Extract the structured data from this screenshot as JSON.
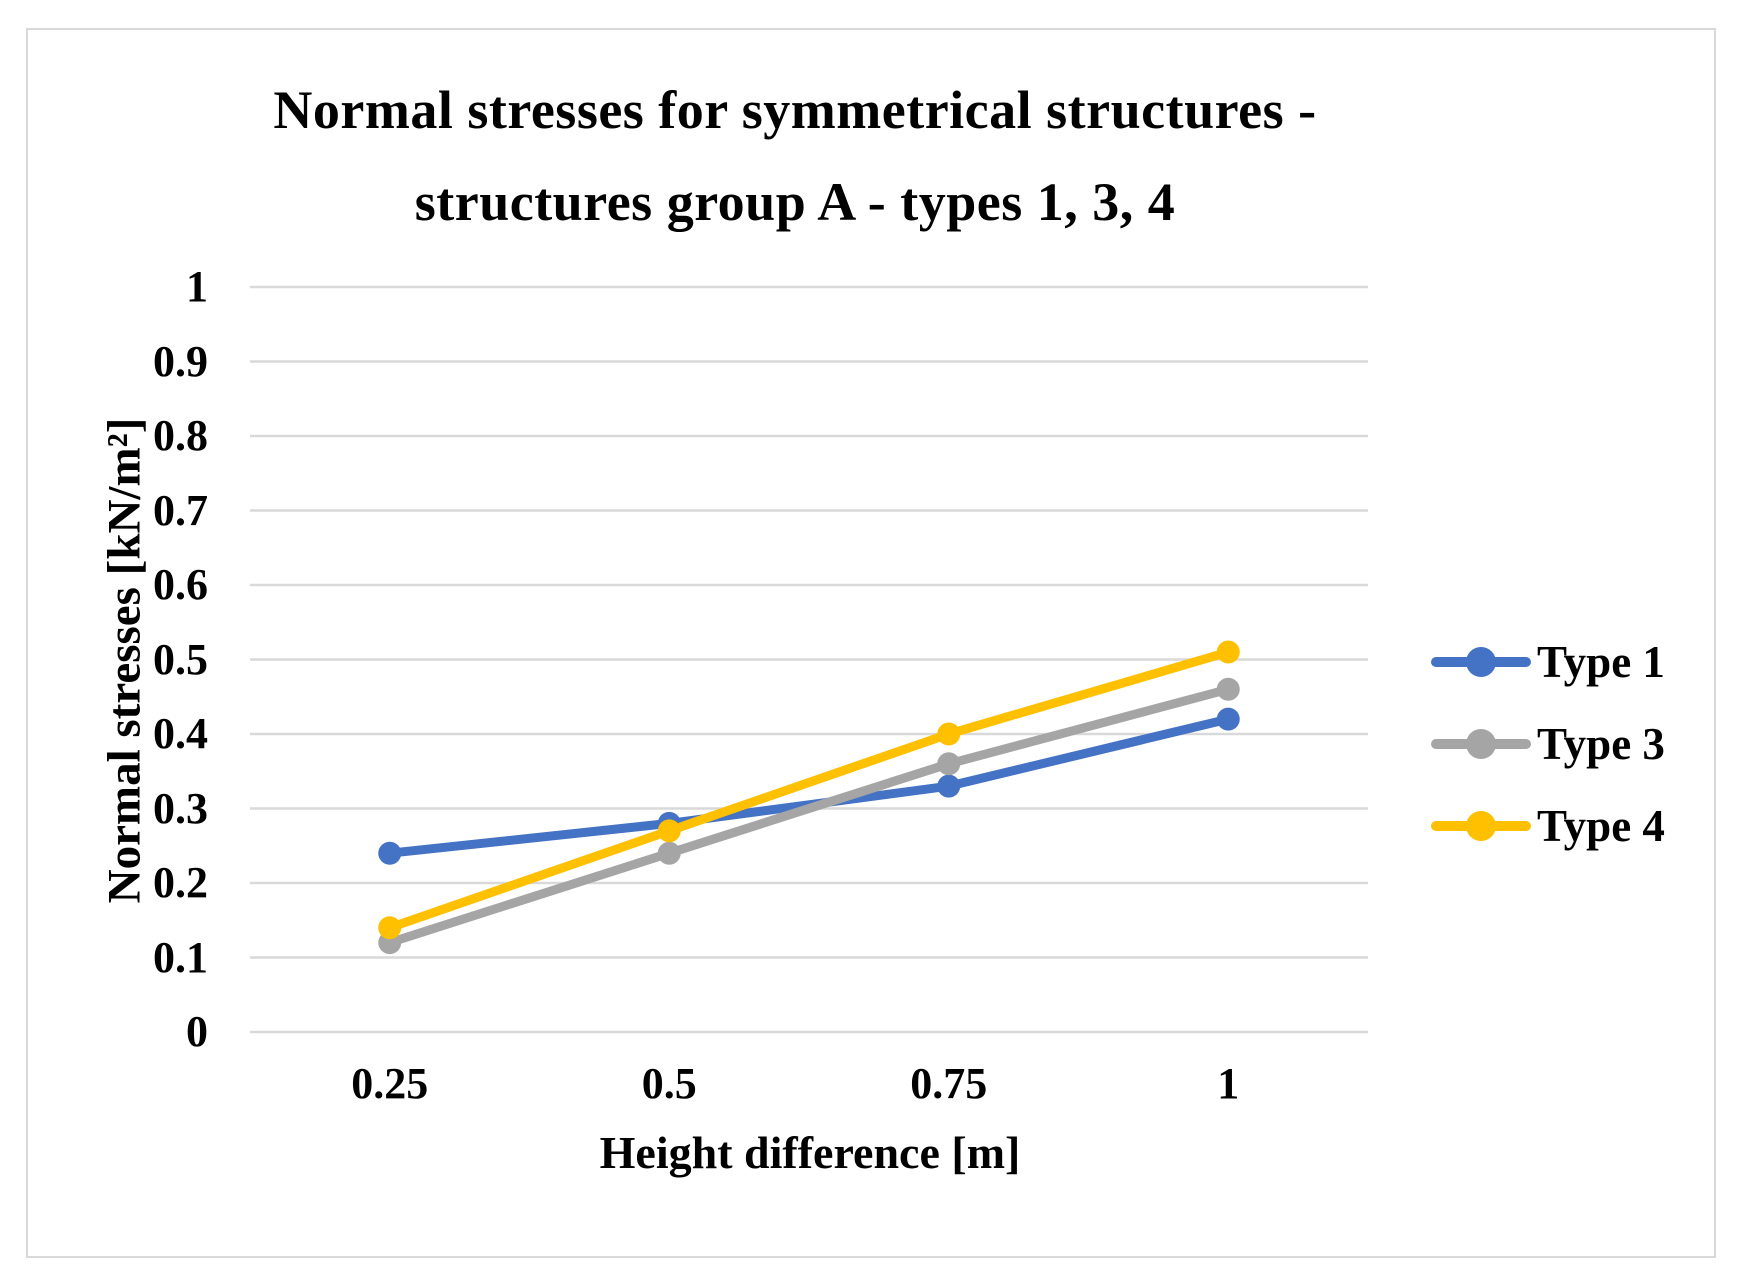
{
  "chart": {
    "title_line1": "Normal stresses for symmetrical structures -",
    "title_line2": "structures group A - types 1, 3, 4",
    "x_axis_title": "Height difference [m]",
    "y_axis_title": "Normal stresses [kN/m²]"
  },
  "chart_data": {
    "type": "line",
    "title": "Normal stresses for symmetrical structures - structures group A - types 1, 3, 4",
    "xlabel": "Height difference [m]",
    "ylabel": "Normal stresses [kN/m²]",
    "categories": [
      0.25,
      0.5,
      0.75,
      1
    ],
    "x_tick_labels": [
      "0.25",
      "0.5",
      "0.75",
      "1"
    ],
    "y_tick_labels": [
      "1",
      "0.9",
      "0.8",
      "0.7",
      "0.6",
      "0.5",
      "0.4",
      "0.3",
      "0.2",
      "0.1",
      "0"
    ],
    "y_tick_values": [
      1,
      0.9,
      0.8,
      0.7,
      0.6,
      0.5,
      0.4,
      0.3,
      0.2,
      0.1,
      0
    ],
    "ylim": [
      0,
      1
    ],
    "grid": "horizontal",
    "marker": "circle",
    "legend_position": "right",
    "series": [
      {
        "name": "Type 1",
        "color": "#4472C4",
        "values": [
          0.24,
          0.28,
          0.33,
          0.42
        ]
      },
      {
        "name": "Type 3",
        "color": "#A5A5A5",
        "values": [
          0.12,
          0.24,
          0.36,
          0.46
        ]
      },
      {
        "name": "Type 4",
        "color": "#FFC000",
        "values": [
          0.14,
          0.27,
          0.4,
          0.51
        ]
      }
    ]
  },
  "colors": {
    "gridline": "#D9D9D9",
    "frame_border": "#D9D9D9",
    "background": "#FFFFFF",
    "text": "#000000"
  }
}
